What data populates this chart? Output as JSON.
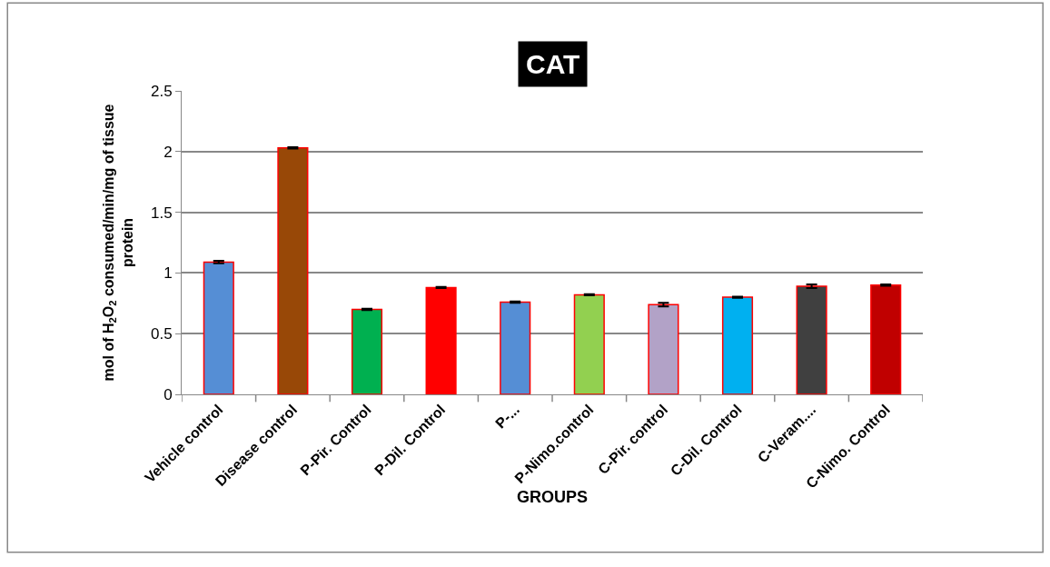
{
  "chart_data": {
    "type": "bar",
    "title": "CAT",
    "xlabel": "GROUPS",
    "ylabel": "mol of H$_{2}$O$_{2}$ consumed/min/mg of tissue protein",
    "categories": [
      "Vehicle control",
      "Disease control",
      "P-Pir. Control",
      "P-Dil. Control",
      "P-...",
      "P-Nimo.control",
      "C-Pir. control",
      "C-Dil. Control",
      "C-Veram....",
      "C-Nimo. Control"
    ],
    "values": [
      1.09,
      2.03,
      0.7,
      0.88,
      0.76,
      0.82,
      0.74,
      0.8,
      0.89,
      0.9
    ],
    "errors": [
      0.01,
      0.005,
      0.005,
      0.005,
      0.005,
      0.005,
      0.015,
      0.005,
      0.015,
      0.005
    ],
    "colors": [
      "#558ed5",
      "#984807",
      "#00b050",
      "#ff0000",
      "#558ed5",
      "#92d050",
      "#b2a2c7",
      "#00b0f0",
      "#404040",
      "#c00000"
    ],
    "ylim": [
      0,
      2.5
    ],
    "yticks": [
      0,
      0.5,
      1,
      1.5,
      2,
      2.5
    ],
    "grid": "y"
  }
}
